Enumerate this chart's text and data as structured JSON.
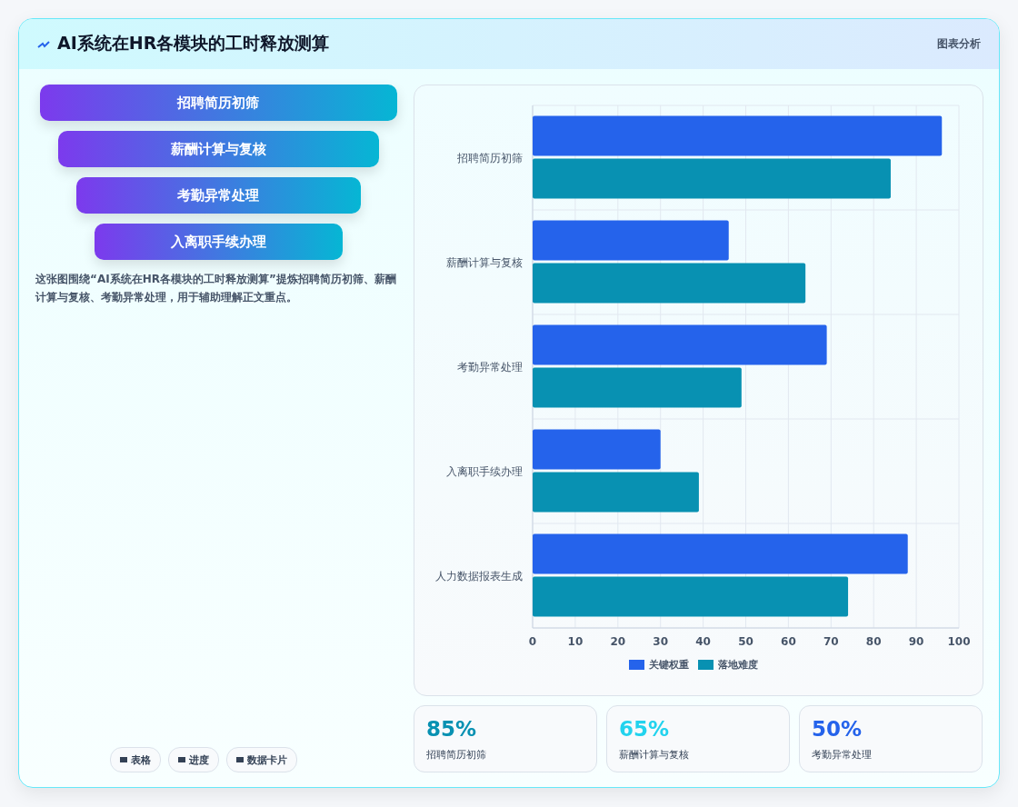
{
  "chart_data": [
    {
      "type": "other",
      "title": "AI系统在HR各模块的工时释放测算",
      "subtitle": "图表分析",
      "categories": [
        "招聘简历初筛",
        "薪酬计算与复核",
        "考勤异常处理",
        "入离职手续办理"
      ],
      "colors": [
        "#7c3aed",
        "#06b6d4"
      ],
      "annotations": [
        "这张图围绕“AI系统在HR各模块的工时释放测算”提炼招聘简历初筛、薪酬计算与复核、考勤异常处理，用于辅助理解正文重点。",
        "表格",
        "进度",
        "数据卡片"
      ]
    },
    {
      "type": "bar",
      "orientation": "horizontal",
      "categories": [
        "招聘简历初筛",
        "薪酬计算与复核",
        "考勤异常处理",
        "入离职手续办理",
        "人力数据报表生成"
      ],
      "series": [
        {
          "name": "关键权重",
          "color": "#2563eb",
          "values": [
            96,
            46,
            69,
            30,
            88
          ]
        },
        {
          "name": "落地难度",
          "color": "#0891b2",
          "values": [
            84,
            64,
            49,
            39,
            74
          ]
        }
      ],
      "xlim": [
        0,
        100
      ],
      "xticks": [
        0,
        10,
        20,
        30,
        40,
        50,
        60,
        70,
        80,
        90,
        100
      ],
      "grid": true,
      "legend": "bottom"
    },
    {
      "type": "other",
      "categories": [
        "招聘简历初筛",
        "薪酬计算与复核",
        "考勤异常处理"
      ],
      "values": [
        85,
        65,
        50
      ],
      "value_labels": [
        "85%",
        "65%",
        "50%"
      ],
      "data_labels": true
    }
  ]
}
